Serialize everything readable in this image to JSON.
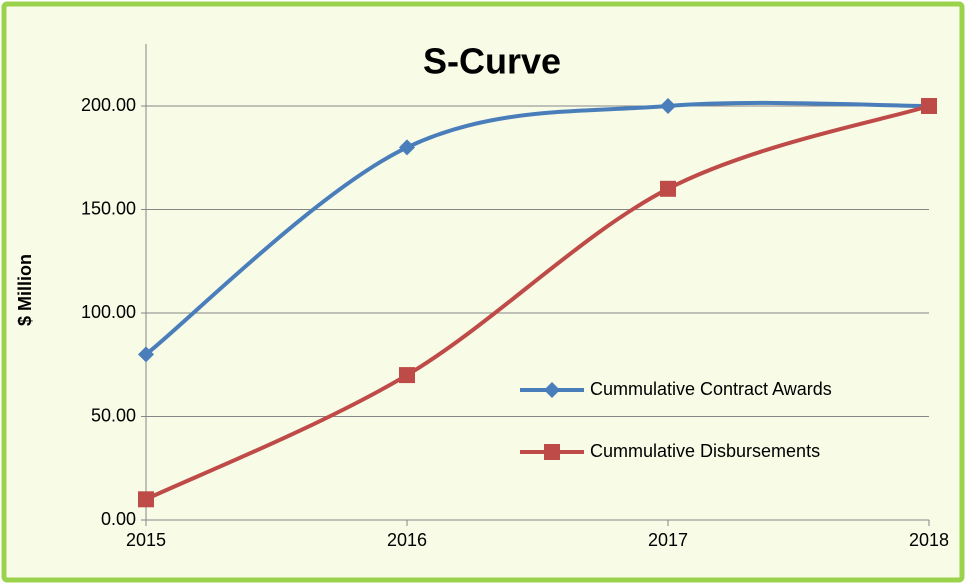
{
  "chart_data": {
    "type": "line",
    "title": "S-Curve",
    "ylabel": "$ Million",
    "x": [
      2015,
      2016,
      2017,
      2018
    ],
    "xlim": [
      2015,
      2018
    ],
    "xticks": [
      2015,
      2016,
      2017,
      2018
    ],
    "ylim": [
      0,
      230
    ],
    "yticks": [
      {
        "value": 0,
        "label": "0.00"
      },
      {
        "value": 50,
        "label": "50.00"
      },
      {
        "value": 100,
        "label": "100.00"
      },
      {
        "value": 150,
        "label": "150.00"
      },
      {
        "value": 200,
        "label": "200.00"
      }
    ],
    "grid": true,
    "smooth": true,
    "legend": "right",
    "series": [
      {
        "name": "Cummulative Contract Awards",
        "color": "#4a7ebb",
        "marker": "diamond",
        "values": [
          80,
          180,
          200,
          200
        ]
      },
      {
        "name": "Cummulative Disbursements",
        "color": "#be4b48",
        "marker": "square",
        "values": [
          10,
          70,
          160,
          200
        ]
      }
    ]
  }
}
